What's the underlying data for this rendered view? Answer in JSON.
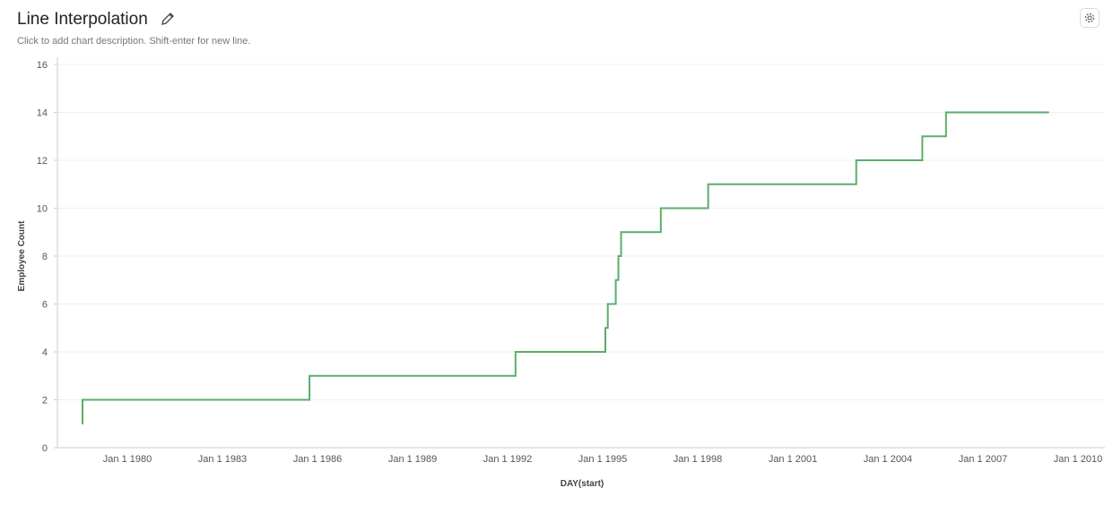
{
  "header": {
    "title": "Line Interpolation",
    "description": "Click to add chart description. Shift-enter for new line.",
    "edit_icon": "pencil-icon",
    "settings_icon": "gear-icon"
  },
  "chart_data": {
    "type": "line",
    "interpolation": "step-after",
    "title": "Line Interpolation",
    "xlabel": "DAY(start)",
    "ylabel": "Employee Count",
    "ylim": [
      0,
      16
    ],
    "yticks": [
      0,
      2,
      4,
      6,
      8,
      10,
      12,
      14,
      16
    ],
    "xlim": [
      "1977-06-01",
      "2010-06-01"
    ],
    "xticks": [
      {
        "date": "1980-01-01",
        "label": "Jan 1 1980"
      },
      {
        "date": "1983-01-01",
        "label": "Jan 1 1983"
      },
      {
        "date": "1986-01-01",
        "label": "Jan 1 1986"
      },
      {
        "date": "1989-01-01",
        "label": "Jan 1 1989"
      },
      {
        "date": "1992-01-01",
        "label": "Jan 1 1992"
      },
      {
        "date": "1995-01-01",
        "label": "Jan 1 1995"
      },
      {
        "date": "1998-01-01",
        "label": "Jan 1 1998"
      },
      {
        "date": "2001-01-01",
        "label": "Jan 1 2001"
      },
      {
        "date": "2004-01-01",
        "label": "Jan 1 2004"
      },
      {
        "date": "2007-01-01",
        "label": "Jan 1 2007"
      },
      {
        "date": "2010-01-01",
        "label": "Jan 1 2010"
      }
    ],
    "grid": true,
    "color": "#5aad6a",
    "points": [
      {
        "x": "1978-08-01",
        "y": 1
      },
      {
        "x": "1978-08-02",
        "y": 2
      },
      {
        "x": "1985-10-01",
        "y": 3
      },
      {
        "x": "1992-04-01",
        "y": 4
      },
      {
        "x": "1995-02-01",
        "y": 5
      },
      {
        "x": "1995-03-01",
        "y": 6
      },
      {
        "x": "1995-06-01",
        "y": 7
      },
      {
        "x": "1995-07-01",
        "y": 8
      },
      {
        "x": "1995-08-01",
        "y": 9
      },
      {
        "x": "1996-11-01",
        "y": 10
      },
      {
        "x": "1998-05-01",
        "y": 11
      },
      {
        "x": "2003-01-01",
        "y": 12
      },
      {
        "x": "2005-02-01",
        "y": 13
      },
      {
        "x": "2005-11-01",
        "y": 14
      },
      {
        "x": "2009-02-01",
        "y": 14
      }
    ]
  }
}
